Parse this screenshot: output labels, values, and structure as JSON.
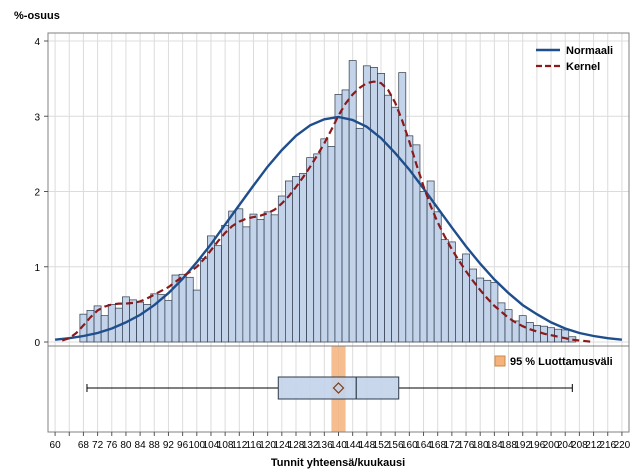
{
  "colors": {
    "bar_fill": "#c3d3ea",
    "bar_stroke": "#2f3a4a",
    "normal_curve": "#1f4e8c",
    "kernel_curve": "#8b1a1a",
    "ci_band": "#f5b27a",
    "grid": "#dcdcdc",
    "frame": "#808080"
  },
  "chart_data": {
    "type": "histogram",
    "ylabel": "%-osuus",
    "xlabel": "Tunnit yhteensä/kuukausi",
    "xlim": [
      58,
      222
    ],
    "ylim": [
      0,
      4.1
    ],
    "x_ticks": [
      60,
      64,
      68,
      72,
      76,
      80,
      84,
      88,
      92,
      96,
      100,
      104,
      108,
      112,
      116,
      120,
      124,
      128,
      132,
      136,
      140,
      144,
      148,
      152,
      156,
      160,
      164,
      168,
      172,
      176,
      180,
      184,
      188,
      192,
      196,
      200,
      204,
      208,
      212,
      216,
      220
    ],
    "x_tick_labels": [
      "60",
      "",
      "68",
      "72",
      "76",
      "80",
      "84",
      "88",
      "92",
      "96",
      "100",
      "104",
      "108",
      "112",
      "116",
      "120",
      "124",
      "128",
      "132",
      "136",
      "140",
      "144",
      "148",
      "152",
      "156",
      "160",
      "164",
      "168",
      "172",
      "176",
      "180",
      "184",
      "188",
      "192",
      "196",
      "200",
      "204",
      "208",
      "212",
      "216",
      "220"
    ],
    "y_ticks": [
      0,
      1,
      2,
      3,
      4
    ],
    "grid": true,
    "legend_position": "top-right",
    "bin_width": 2,
    "bins": [
      {
        "x": 68,
        "y": 0.37
      },
      {
        "x": 70,
        "y": 0.42
      },
      {
        "x": 72,
        "y": 0.48
      },
      {
        "x": 74,
        "y": 0.35
      },
      {
        "x": 76,
        "y": 0.5
      },
      {
        "x": 78,
        "y": 0.45
      },
      {
        "x": 80,
        "y": 0.6
      },
      {
        "x": 82,
        "y": 0.56
      },
      {
        "x": 84,
        "y": 0.53
      },
      {
        "x": 86,
        "y": 0.5
      },
      {
        "x": 88,
        "y": 0.64
      },
      {
        "x": 90,
        "y": 0.63
      },
      {
        "x": 92,
        "y": 0.55
      },
      {
        "x": 94,
        "y": 0.89
      },
      {
        "x": 96,
        "y": 0.9
      },
      {
        "x": 98,
        "y": 0.86
      },
      {
        "x": 100,
        "y": 0.69
      },
      {
        "x": 102,
        "y": 1.11
      },
      {
        "x": 104,
        "y": 1.41
      },
      {
        "x": 106,
        "y": 1.28
      },
      {
        "x": 108,
        "y": 1.55
      },
      {
        "x": 110,
        "y": 1.74
      },
      {
        "x": 112,
        "y": 1.77
      },
      {
        "x": 114,
        "y": 1.53
      },
      {
        "x": 116,
        "y": 1.7
      },
      {
        "x": 118,
        "y": 1.63
      },
      {
        "x": 120,
        "y": 1.73
      },
      {
        "x": 122,
        "y": 1.69
      },
      {
        "x": 124,
        "y": 1.94
      },
      {
        "x": 126,
        "y": 2.14
      },
      {
        "x": 128,
        "y": 2.2
      },
      {
        "x": 130,
        "y": 2.24
      },
      {
        "x": 132,
        "y": 2.45
      },
      {
        "x": 134,
        "y": 2.5
      },
      {
        "x": 136,
        "y": 2.7
      },
      {
        "x": 138,
        "y": 2.6
      },
      {
        "x": 140,
        "y": 3.29
      },
      {
        "x": 142,
        "y": 3.35
      },
      {
        "x": 144,
        "y": 3.74
      },
      {
        "x": 146,
        "y": 2.84
      },
      {
        "x": 148,
        "y": 3.67
      },
      {
        "x": 150,
        "y": 3.65
      },
      {
        "x": 152,
        "y": 3.57
      },
      {
        "x": 154,
        "y": 3.28
      },
      {
        "x": 156,
        "y": 3.12
      },
      {
        "x": 158,
        "y": 3.58
      },
      {
        "x": 160,
        "y": 2.74
      },
      {
        "x": 162,
        "y": 2.62
      },
      {
        "x": 164,
        "y": 2.0
      },
      {
        "x": 166,
        "y": 2.14
      },
      {
        "x": 168,
        "y": 1.73
      },
      {
        "x": 170,
        "y": 1.36
      },
      {
        "x": 172,
        "y": 1.33
      },
      {
        "x": 174,
        "y": 1.1
      },
      {
        "x": 176,
        "y": 1.17
      },
      {
        "x": 178,
        "y": 0.97
      },
      {
        "x": 180,
        "y": 0.85
      },
      {
        "x": 182,
        "y": 0.82
      },
      {
        "x": 184,
        "y": 0.79
      },
      {
        "x": 186,
        "y": 0.52
      },
      {
        "x": 188,
        "y": 0.43
      },
      {
        "x": 190,
        "y": 0.28
      },
      {
        "x": 192,
        "y": 0.35
      },
      {
        "x": 194,
        "y": 0.26
      },
      {
        "x": 196,
        "y": 0.22
      },
      {
        "x": 198,
        "y": 0.21
      },
      {
        "x": 200,
        "y": 0.19
      },
      {
        "x": 202,
        "y": 0.17
      },
      {
        "x": 204,
        "y": 0.16
      },
      {
        "x": 206,
        "y": 0.07
      }
    ],
    "series": [
      {
        "name": "Normaali",
        "style": "solid",
        "x": [
          60,
          64,
          68,
          72,
          76,
          80,
          84,
          88,
          92,
          96,
          100,
          104,
          108,
          112,
          116,
          120,
          124,
          128,
          132,
          136,
          140,
          144,
          148,
          152,
          156,
          160,
          164,
          168,
          172,
          176,
          180,
          184,
          188,
          192,
          196,
          200,
          204,
          208,
          212,
          216,
          220
        ],
        "y": [
          0.03,
          0.05,
          0.08,
          0.12,
          0.18,
          0.26,
          0.36,
          0.49,
          0.65,
          0.84,
          1.06,
          1.3,
          1.56,
          1.82,
          2.08,
          2.33,
          2.55,
          2.74,
          2.88,
          2.96,
          2.99,
          2.95,
          2.86,
          2.71,
          2.51,
          2.29,
          2.04,
          1.78,
          1.52,
          1.27,
          1.04,
          0.83,
          0.65,
          0.49,
          0.37,
          0.26,
          0.18,
          0.12,
          0.08,
          0.05,
          0.03
        ]
      },
      {
        "name": "Kernel",
        "style": "dashed",
        "x": [
          62,
          64,
          66,
          68,
          70,
          72,
          74,
          76,
          78,
          80,
          82,
          84,
          86,
          88,
          90,
          92,
          94,
          96,
          98,
          100,
          102,
          104,
          106,
          108,
          110,
          112,
          114,
          116,
          118,
          120,
          122,
          124,
          126,
          128,
          130,
          132,
          134,
          136,
          138,
          140,
          142,
          144,
          146,
          148,
          150,
          152,
          154,
          156,
          158,
          160,
          162,
          164,
          166,
          168,
          170,
          172,
          174,
          176,
          178,
          180,
          182,
          184,
          186,
          188,
          190,
          192,
          194,
          196,
          198,
          200,
          202,
          204,
          206,
          208,
          210,
          212
        ],
        "y": [
          0.02,
          0.05,
          0.12,
          0.22,
          0.33,
          0.42,
          0.47,
          0.5,
          0.51,
          0.51,
          0.52,
          0.54,
          0.58,
          0.63,
          0.68,
          0.73,
          0.8,
          0.87,
          0.93,
          1.0,
          1.1,
          1.22,
          1.34,
          1.45,
          1.54,
          1.6,
          1.64,
          1.66,
          1.68,
          1.71,
          1.76,
          1.84,
          1.94,
          2.06,
          2.19,
          2.33,
          2.48,
          2.64,
          2.82,
          3.01,
          3.17,
          3.29,
          3.38,
          3.44,
          3.46,
          3.44,
          3.35,
          3.18,
          2.94,
          2.66,
          2.36,
          2.07,
          1.81,
          1.59,
          1.4,
          1.23,
          1.08,
          0.94,
          0.81,
          0.69,
          0.58,
          0.48,
          0.4,
          0.32,
          0.26,
          0.21,
          0.17,
          0.14,
          0.11,
          0.09,
          0.07,
          0.05,
          0.03,
          0.02,
          0.01,
          0.0
        ]
      }
    ],
    "boxplot": {
      "min": 69,
      "q1": 123,
      "median": 145,
      "q3": 157,
      "max": 206,
      "mean": 140,
      "ci_label": "95 % Luottamusväli",
      "ci": [
        138,
        142
      ]
    },
    "legend": [
      "Normaali",
      "Kernel"
    ]
  }
}
